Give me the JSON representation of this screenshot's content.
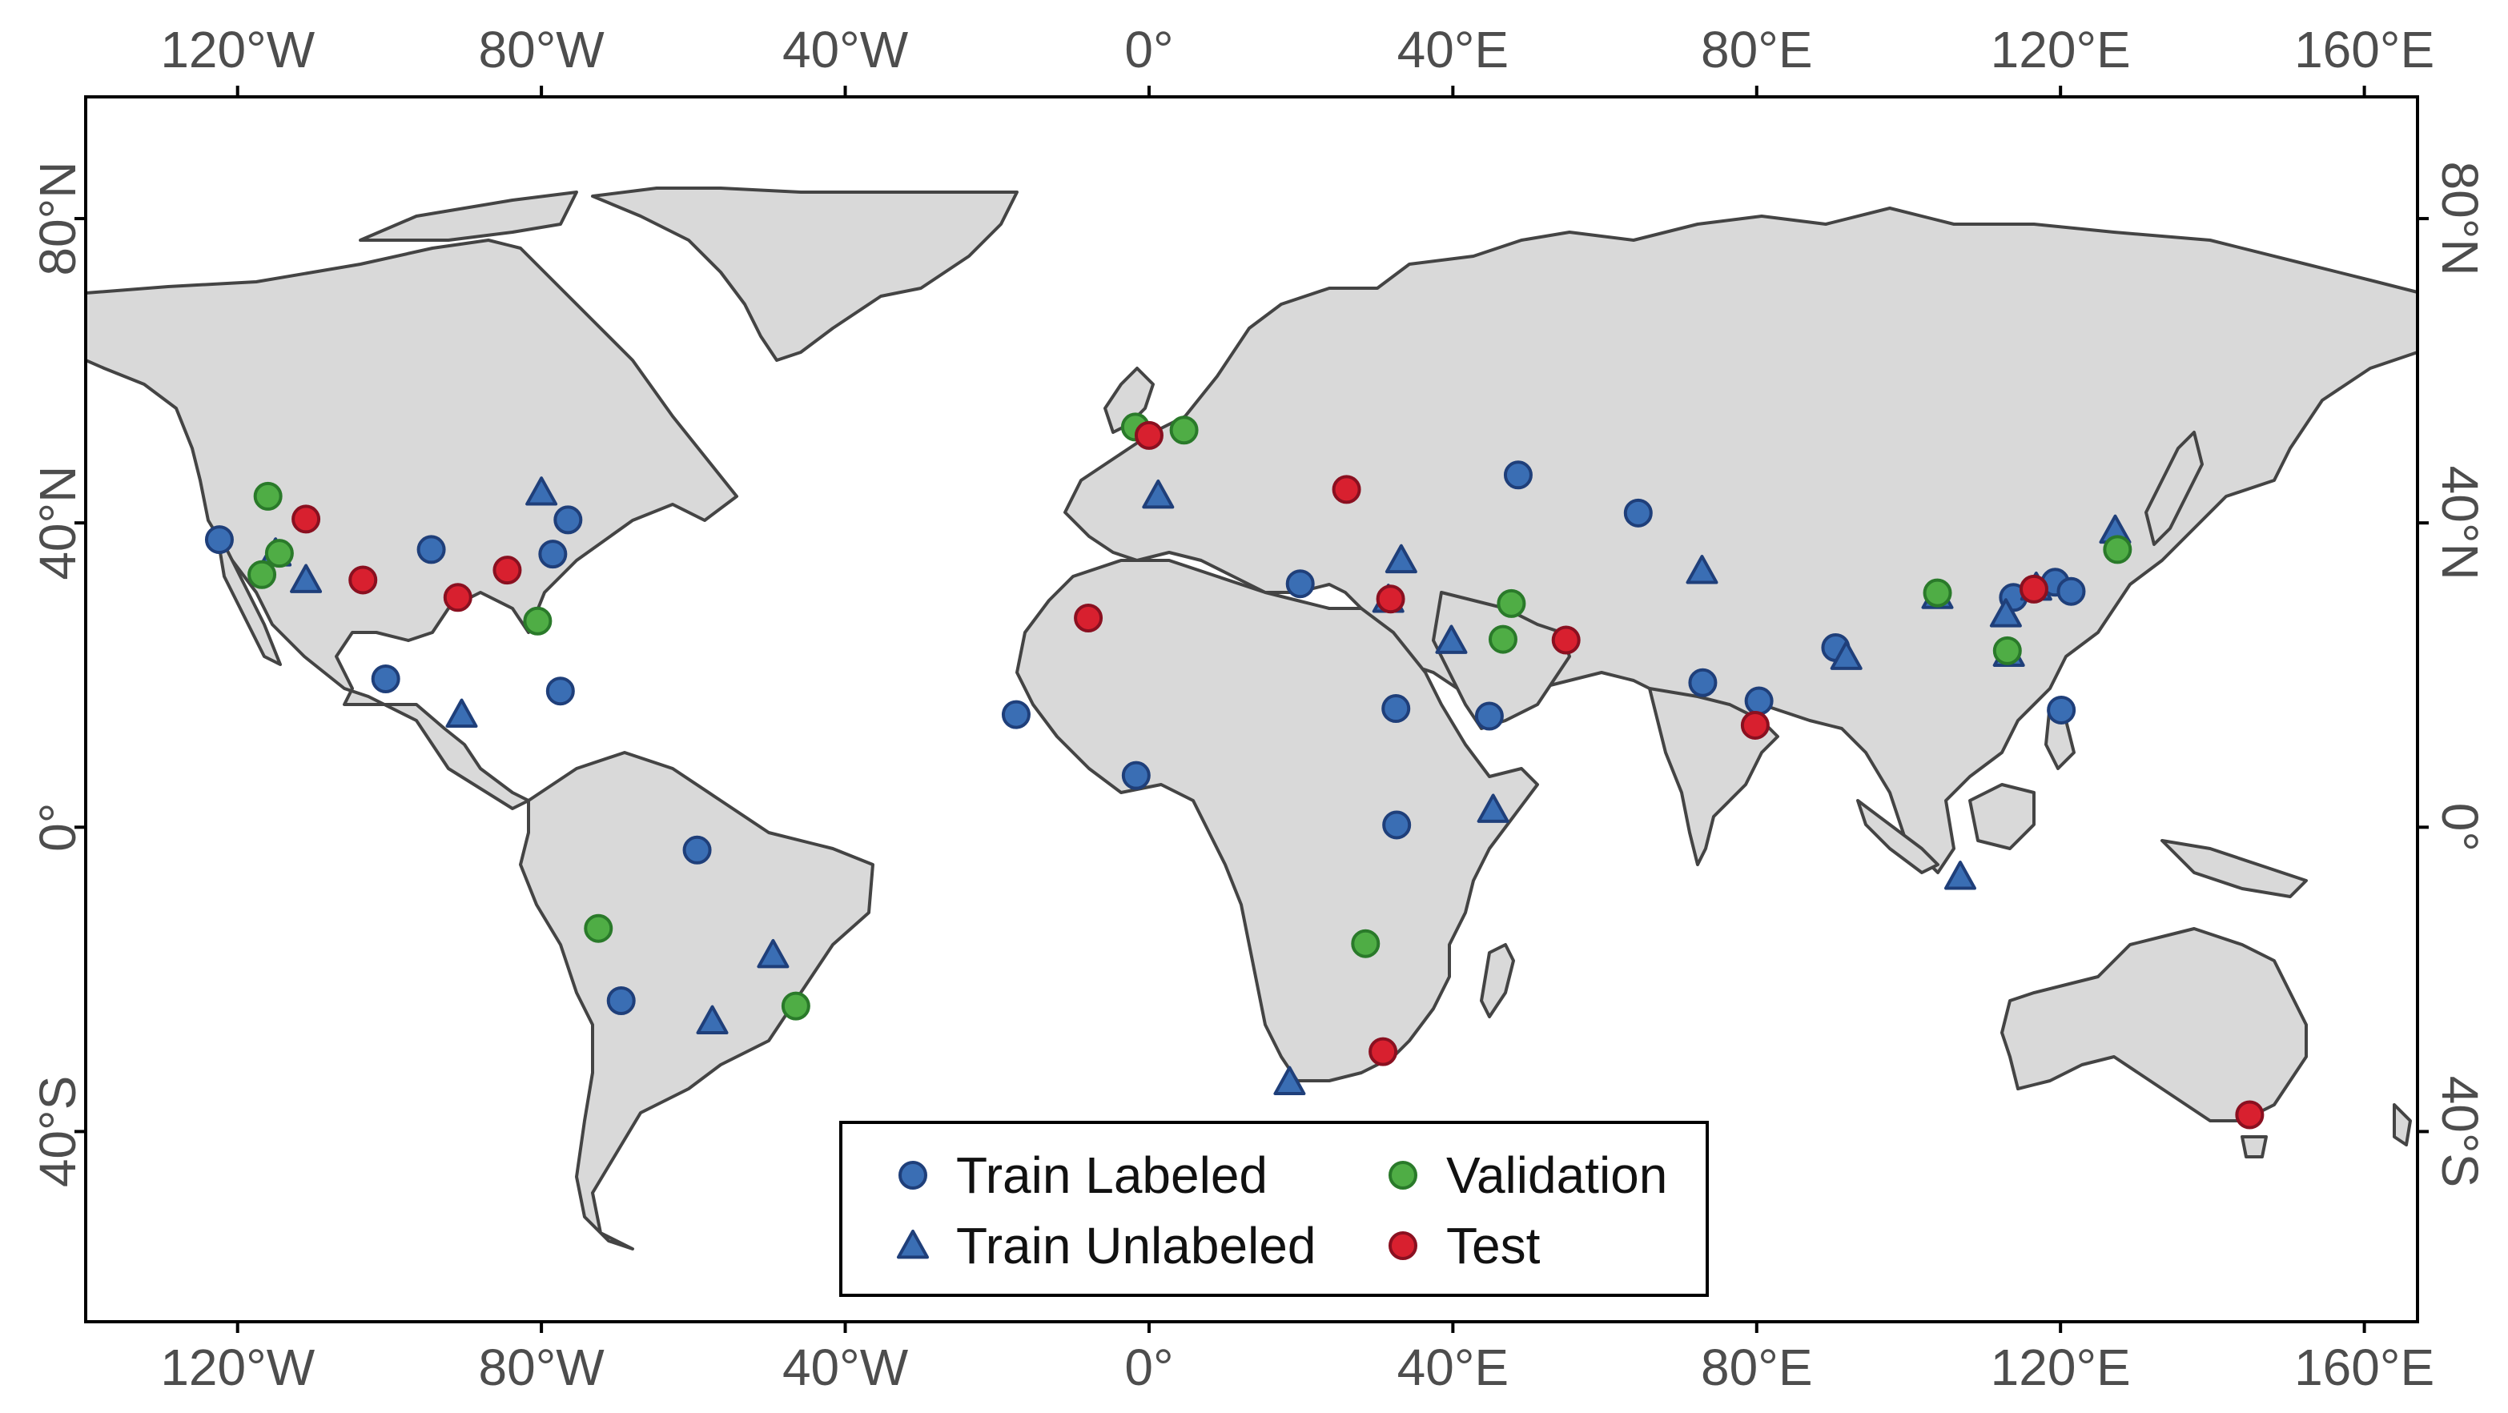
{
  "chart_data": {
    "type": "scatter",
    "projection": "equirectangular",
    "extent": {
      "lon": [
        -140,
        167
      ],
      "lat": [
        -65,
        96
      ]
    },
    "x_ticks": [
      {
        "value": -120,
        "label": "120°W"
      },
      {
        "value": -80,
        "label": "80°W"
      },
      {
        "value": -40,
        "label": "40°W"
      },
      {
        "value": 0,
        "label": "0°"
      },
      {
        "value": 40,
        "label": "40°E"
      },
      {
        "value": 80,
        "label": "80°E"
      },
      {
        "value": 120,
        "label": "120°E"
      },
      {
        "value": 160,
        "label": "160°E"
      }
    ],
    "y_ticks": [
      {
        "value": 80,
        "label": "80°N"
      },
      {
        "value": 40,
        "label": "40°N"
      },
      {
        "value": 0,
        "label": "0°"
      },
      {
        "value": -40,
        "label": "40°S"
      }
    ],
    "legend_position": "bottom-center",
    "series": [
      {
        "name": "Train Labeled",
        "marker": "circle",
        "color": "#3a6eb4",
        "edge": "#1f3f7a",
        "points": [
          [
            -122.4,
            37.8
          ],
          [
            -94.5,
            36.5
          ],
          [
            -78.5,
            35.9
          ],
          [
            -76.5,
            40.4
          ],
          [
            -100.5,
            19.5
          ],
          [
            -77.5,
            17.9
          ],
          [
            -59.5,
            -3.0
          ],
          [
            -69.5,
            -22.8
          ],
          [
            19.9,
            32.0
          ],
          [
            48.6,
            46.3
          ],
          [
            64.4,
            41.3
          ],
          [
            -17.5,
            14.8
          ],
          [
            -1.7,
            6.8
          ],
          [
            32.5,
            15.6
          ],
          [
            32.6,
            0.3
          ],
          [
            44.8,
            14.6
          ],
          [
            72.9,
            19.0
          ],
          [
            80.3,
            16.6
          ],
          [
            90.4,
            23.6
          ],
          [
            113.8,
            30.2
          ],
          [
            119.3,
            32.2
          ],
          [
            121.4,
            31.0
          ],
          [
            120.1,
            15.4
          ]
        ]
      },
      {
        "name": "Train Unlabeled",
        "marker": "triangle",
        "color": "#3a6eb4",
        "edge": "#1f3f7a",
        "points": [
          [
            -115.0,
            36.0
          ],
          [
            -111.0,
            32.5
          ],
          [
            -80.0,
            44.0
          ],
          [
            -90.5,
            14.8
          ],
          [
            -49.5,
            -16.8
          ],
          [
            -57.5,
            -25.5
          ],
          [
            18.5,
            -33.5
          ],
          [
            1.2,
            43.6
          ],
          [
            33.2,
            35.1
          ],
          [
            31.5,
            29.9
          ],
          [
            39.8,
            24.5
          ],
          [
            45.3,
            2.3
          ],
          [
            72.8,
            33.7
          ],
          [
            91.8,
            22.4
          ],
          [
            103.8,
            30.4
          ],
          [
            112.8,
            28.0
          ],
          [
            113.2,
            22.8
          ],
          [
            116.8,
            31.5
          ],
          [
            106.8,
            -6.5
          ],
          [
            127.2,
            39.0
          ]
        ]
      },
      {
        "name": "Validation",
        "marker": "circle",
        "color": "#4fad45",
        "edge": "#2a7a2a",
        "points": [
          [
            -116.0,
            43.5
          ],
          [
            -116.8,
            33.2
          ],
          [
            -114.5,
            36.0
          ],
          [
            -80.5,
            27.1
          ],
          [
            -72.5,
            -13.3
          ],
          [
            -46.5,
            -23.5
          ],
          [
            -1.8,
            52.6
          ],
          [
            4.6,
            52.2
          ],
          [
            28.5,
            -15.3
          ],
          [
            47.7,
            29.4
          ],
          [
            46.6,
            24.7
          ],
          [
            103.8,
            30.8
          ],
          [
            113.0,
            23.2
          ],
          [
            127.5,
            36.5
          ]
        ]
      },
      {
        "name": "Test",
        "marker": "circle",
        "color": "#d8202f",
        "edge": "#8a1020",
        "points": [
          [
            -111.0,
            40.5
          ],
          [
            -103.5,
            32.5
          ],
          [
            -91.0,
            30.2
          ],
          [
            -84.5,
            33.8
          ],
          [
            0.0,
            51.5
          ],
          [
            -8.0,
            27.5
          ],
          [
            26.0,
            44.4
          ],
          [
            31.8,
            30.0
          ],
          [
            54.9,
            24.6
          ],
          [
            79.8,
            13.4
          ],
          [
            116.5,
            31.3
          ],
          [
            30.8,
            -29.5
          ],
          [
            144.9,
            -37.8
          ]
        ]
      }
    ]
  }
}
